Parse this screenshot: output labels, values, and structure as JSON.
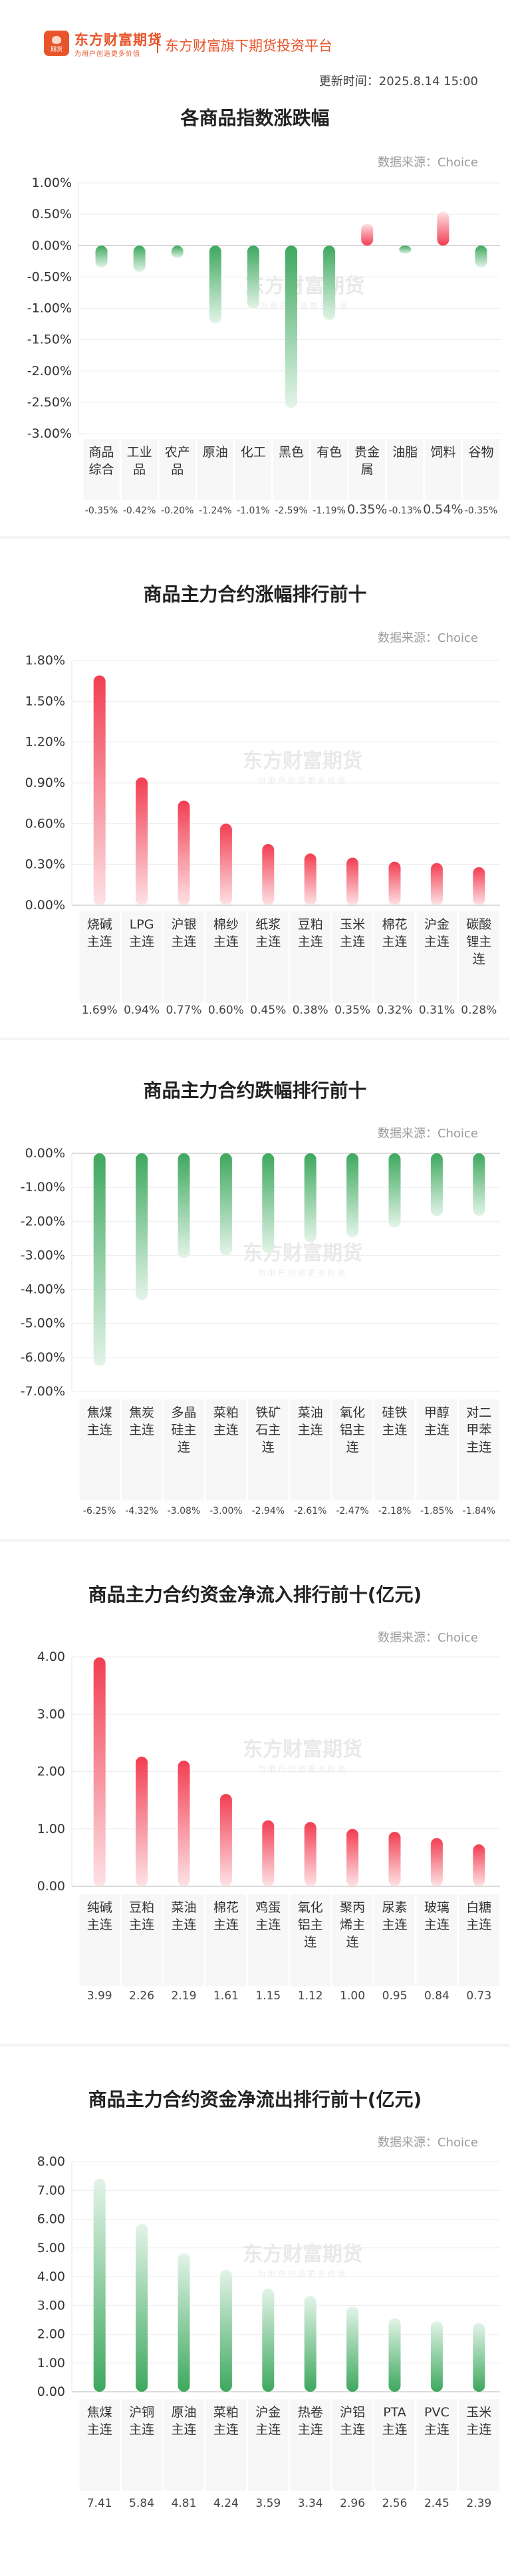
{
  "header": {
    "logo_name": "东方财富期货",
    "logo_slogan": "为用户创造更多价值",
    "logo_mini": "期货",
    "platform": "东方财富旗下期货投资平台",
    "update_time": "更新时间：2025.8.14 15:00"
  },
  "watermark": {
    "main": "东方财富期货",
    "sub": "为用户创造更多价值"
  },
  "colors": {
    "up": "#f0485a",
    "down": "#4cae68",
    "positive_text": "#f0485a",
    "negative_text": "#4cae68"
  },
  "chart_data": [
    {
      "type": "bar",
      "title": "各商品指数涨跌幅",
      "source": "数据来源：Choice",
      "categories": [
        "商品综合",
        "工业品",
        "农产品",
        "原油",
        "化工",
        "黑色",
        "有色",
        "贵金属",
        "油脂",
        "饲料",
        "谷物"
      ],
      "values": [
        -0.35,
        -0.42,
        -0.2,
        -1.24,
        -1.01,
        -2.59,
        -1.19,
        0.35,
        -0.13,
        0.54,
        -0.35
      ],
      "value_labels": [
        "-0.35%",
        "-0.42%",
        "-0.20%",
        "-1.24%",
        "-1.01%",
        "-2.59%",
        "-1.19%",
        "0.35%",
        "-0.13%",
        "0.54%",
        "-0.35%"
      ],
      "ylim": [
        -3.0,
        1.0
      ],
      "yticks": [
        1.0,
        0.5,
        0.0,
        -0.5,
        -1.0,
        -1.5,
        -2.0,
        -2.5,
        -3.0
      ],
      "ytick_labels": [
        "1.00%",
        "0.50%",
        "0.00%",
        "-0.50%",
        "-1.00%",
        "-1.50%",
        "-2.00%",
        "-2.50%",
        "-3.00%"
      ],
      "grid": true
    },
    {
      "type": "bar",
      "title": "商品主力合约涨幅排行前十",
      "source": "数据来源：Choice",
      "categories": [
        "烧碱主连",
        "LPG主连",
        "沪银主连",
        "棉纱主连",
        "纸浆主连",
        "豆粕主连",
        "玉米主连",
        "棉花主连",
        "沪金主连",
        "碳酸锂主连"
      ],
      "values": [
        1.69,
        0.94,
        0.77,
        0.6,
        0.45,
        0.38,
        0.35,
        0.32,
        0.31,
        0.28
      ],
      "value_labels": [
        "1.69%",
        "0.94%",
        "0.77%",
        "0.60%",
        "0.45%",
        "0.38%",
        "0.35%",
        "0.32%",
        "0.31%",
        "0.28%"
      ],
      "ylim": [
        0,
        1.8
      ],
      "yticks": [
        1.8,
        1.5,
        1.2,
        0.9,
        0.6,
        0.3,
        0.0
      ],
      "ytick_labels": [
        "1.80%",
        "1.50%",
        "1.20%",
        "0.90%",
        "0.60%",
        "0.30%",
        "0.00%"
      ],
      "grid": true
    },
    {
      "type": "bar",
      "title": "商品主力合约跌幅排行前十",
      "source": "数据来源：Choice",
      "categories": [
        "焦煤主连",
        "焦炭主连",
        "多晶硅主连",
        "菜粕主连",
        "铁矿石主连",
        "菜油主连",
        "氧化铝主连",
        "硅铁主连",
        "甲醇主连",
        "对二甲苯主连"
      ],
      "values": [
        -6.25,
        -4.32,
        -3.08,
        -3.0,
        -2.94,
        -2.61,
        -2.47,
        -2.18,
        -1.85,
        -1.84
      ],
      "value_labels": [
        "-6.25%",
        "-4.32%",
        "-3.08%",
        "-3.00%",
        "-2.94%",
        "-2.61%",
        "-2.47%",
        "-2.18%",
        "-1.85%",
        "-1.84%"
      ],
      "ylim": [
        -7.0,
        0
      ],
      "yticks": [
        0,
        -1,
        -2,
        -3,
        -4,
        -5,
        -6,
        -7
      ],
      "ytick_labels": [
        "0.00%",
        "-1.00%",
        "-2.00%",
        "-3.00%",
        "-4.00%",
        "-5.00%",
        "-6.00%",
        "-7.00%"
      ],
      "grid": true
    },
    {
      "type": "bar",
      "title": "商品主力合约资金净流入排行前十(亿元)",
      "source": "数据来源：Choice",
      "categories": [
        "纯碱主连",
        "豆粕主连",
        "菜油主连",
        "棉花主连",
        "鸡蛋主连",
        "氧化铝主连",
        "聚丙烯主连",
        "尿素主连",
        "玻璃主连",
        "白糖主连"
      ],
      "values": [
        3.99,
        2.26,
        2.19,
        1.61,
        1.15,
        1.12,
        1.0,
        0.95,
        0.84,
        0.73
      ],
      "value_labels": [
        "3.99",
        "2.26",
        "2.19",
        "1.61",
        "1.15",
        "1.12",
        "1.00",
        "0.95",
        "0.84",
        "0.73"
      ],
      "ylim": [
        0,
        4.0
      ],
      "yticks": [
        4.0,
        3.0,
        2.0,
        1.0,
        0.0
      ],
      "ytick_labels": [
        "4.00",
        "3.00",
        "2.00",
        "1.00",
        "0.00"
      ],
      "grid": true
    },
    {
      "type": "bar",
      "title": "商品主力合约资金净流出排行前十(亿元)",
      "source": "数据来源：Choice",
      "categories": [
        "焦煤主连",
        "沪铜主连",
        "原油主连",
        "菜粕主连",
        "沪金主连",
        "热卷主连",
        "沪铝主连",
        "PTA主连",
        "PVC主连",
        "玉米主连"
      ],
      "values": [
        7.41,
        5.84,
        4.81,
        4.24,
        3.59,
        3.34,
        2.96,
        2.56,
        2.45,
        2.39
      ],
      "value_labels": [
        "7.41",
        "5.84",
        "4.81",
        "4.24",
        "3.59",
        "3.34",
        "2.96",
        "2.56",
        "2.45",
        "2.39"
      ],
      "ylim": [
        0,
        8.0
      ],
      "yticks": [
        8,
        7,
        6,
        5,
        4,
        3,
        2,
        1,
        0
      ],
      "ytick_labels": [
        "8.00",
        "7.00",
        "6.00",
        "5.00",
        "4.00",
        "3.00",
        "2.00",
        "1.00",
        "0.00"
      ],
      "grid": true
    }
  ]
}
